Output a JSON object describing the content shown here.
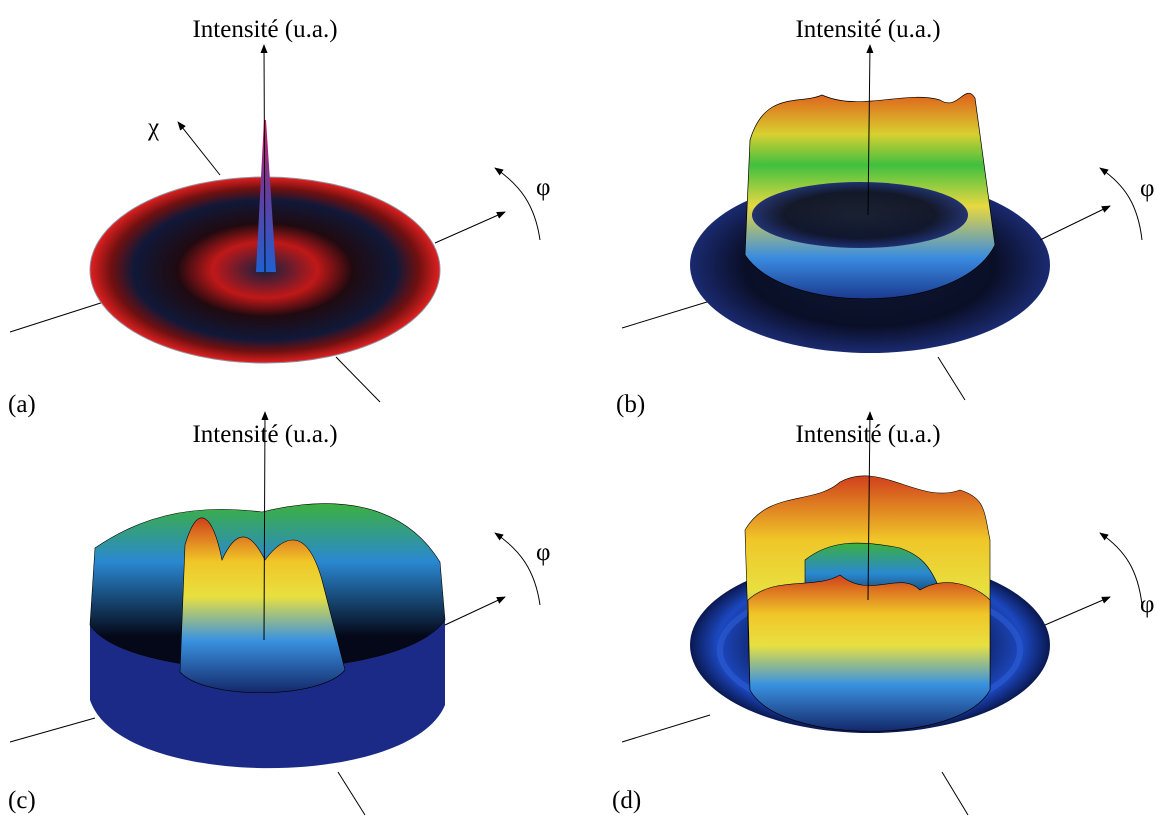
{
  "panels": [
    {
      "label": "(a)",
      "z_axis_label": "Intensité (u.a.)",
      "phi_label": "φ",
      "chi_label": "χ"
    },
    {
      "label": "(b)",
      "z_axis_label": "Intensité (u.a.)",
      "phi_label": "φ"
    },
    {
      "label": "(c)",
      "z_axis_label": "Intensité (u.a.)",
      "phi_label": "φ"
    },
    {
      "label": "(d)",
      "z_axis_label": "Intensité (u.a.)",
      "phi_label": "φ"
    }
  ]
}
